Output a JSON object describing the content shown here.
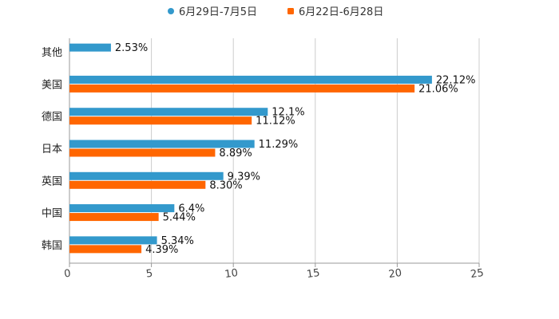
{
  "chart_data": {
    "type": "bar",
    "orientation": "horizontal",
    "title": "",
    "xlabel": "",
    "ylabel": "",
    "xlim": [
      0,
      25
    ],
    "x_ticks": [
      0,
      5,
      10,
      15,
      20,
      25
    ],
    "x_tick_labels": [
      "0",
      "5",
      "10",
      "15",
      "20",
      "25"
    ],
    "grid": "vertical",
    "legend_position": "top-center",
    "categories": [
      "其他",
      "美国",
      "德国",
      "日本",
      "英国",
      "中国",
      "韩国"
    ],
    "series": [
      {
        "name": "6月29日-7月5日",
        "color": "#3399cc",
        "values": [
          2.53,
          22.12,
          12.1,
          11.29,
          9.39,
          6.4,
          5.34
        ],
        "labels": [
          "2.53%",
          "22.12%",
          "12.1%",
          "11.29%",
          "9.39%",
          "6.4%",
          "5.34%"
        ]
      },
      {
        "name": "6月22日-6月28日",
        "color": "#ff6600",
        "values": [
          null,
          21.06,
          11.12,
          8.89,
          8.3,
          5.44,
          4.39
        ],
        "labels": [
          null,
          "21.06%",
          "11.12%",
          "8.89%",
          "8.30%",
          "5.44%",
          "4.39%"
        ]
      }
    ]
  }
}
